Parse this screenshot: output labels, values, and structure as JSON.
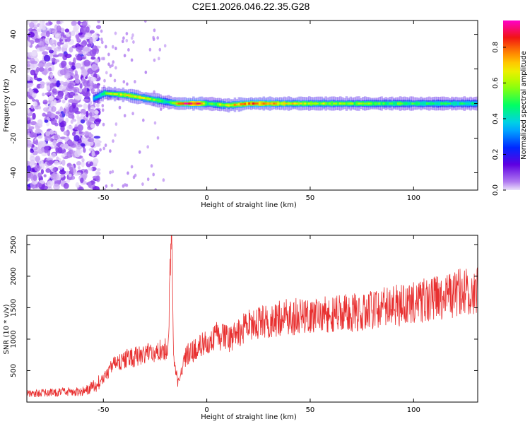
{
  "title": "C2E1.2026.046.22.35.G28",
  "colors": {
    "snr_line": "#e83030",
    "frame": "#000000"
  },
  "chart_data": [
    {
      "type": "heatmap",
      "title": "C2E1.2026.046.22.35.G28",
      "xlabel": "Height of straight line (km)",
      "ylabel": "Frequency (Hz)",
      "xlim": [
        -87,
        131
      ],
      "ylim": [
        -50,
        48
      ],
      "x_ticks": [
        -50,
        0,
        50,
        100
      ],
      "y_ticks": [
        -40,
        -20,
        0,
        20,
        40
      ],
      "colorbar": {
        "label": "Normalized spectral amplitude",
        "range": [
          0.0,
          0.95
        ],
        "ticks": [
          "0.0",
          "0.2",
          "0.4",
          "0.6",
          "0.8"
        ],
        "colormap": "rainbow (violet-blue-cyan-green-yellow-orange-red-magenta)"
      },
      "noise_region_x": [
        -87,
        -52
      ],
      "signal_track": {
        "x": [
          -55,
          -50,
          -40,
          -30,
          -25,
          -20,
          -15,
          -10,
          -5,
          0,
          10,
          20,
          50,
          100,
          131
        ],
        "frequency": [
          3,
          6,
          5,
          3,
          2,
          1,
          0,
          0,
          0,
          0,
          -1,
          0,
          0,
          0,
          0
        ],
        "peak_amplitude": [
          0.35,
          0.55,
          0.7,
          0.65,
          0.6,
          0.4,
          0.75,
          0.9,
          0.95,
          0.5,
          0.7,
          0.85,
          0.65,
          0.5,
          0.45
        ]
      }
    },
    {
      "type": "line",
      "xlabel": "Height of straight line (km)",
      "ylabel": "SNR (10 * v/v)",
      "xlim": [
        -87,
        131
      ],
      "ylim": [
        0,
        2650
      ],
      "x_ticks": [
        -50,
        0,
        50,
        100
      ],
      "y_ticks": [
        500,
        1000,
        1500,
        2000,
        2500
      ],
      "series": [
        {
          "x": [
            -87,
            -75,
            -60,
            -52,
            -45,
            -38,
            -30,
            -24,
            -19,
            -17,
            -16,
            -14,
            -10,
            -5,
            0,
            5,
            10,
            15,
            20,
            30,
            40,
            50,
            60,
            70,
            80,
            90,
            100,
            110,
            120,
            131
          ],
          "y": [
            130,
            150,
            170,
            300,
            600,
            700,
            750,
            800,
            850,
            2650,
            700,
            300,
            750,
            850,
            950,
            1050,
            1000,
            1100,
            1200,
            1300,
            1350,
            1380,
            1400,
            1420,
            1470,
            1520,
            1580,
            1650,
            1720,
            1800
          ]
        }
      ]
    }
  ]
}
